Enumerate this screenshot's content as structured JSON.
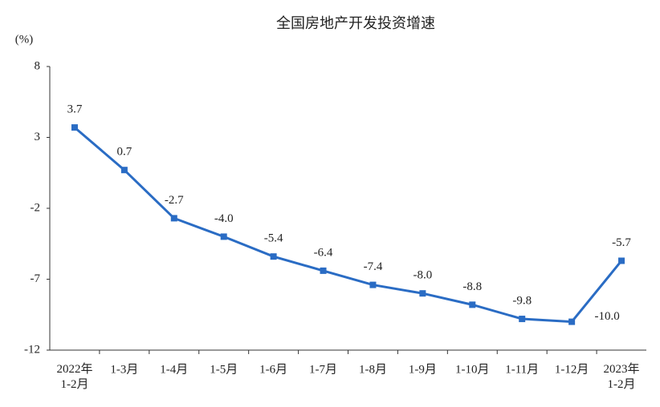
{
  "chart_data": {
    "type": "line",
    "title": "全国房地产开发投资增速",
    "y_label": "(%)",
    "categories": [
      "2022年\n1-2月",
      "1-3月",
      "1-4月",
      "1-5月",
      "1-6月",
      "1-7月",
      "1-8月",
      "1-9月",
      "1-10月",
      "1-11月",
      "1-12月",
      "2023年\n1-2月"
    ],
    "series": [
      {
        "name": "全国房地产开发投资增速",
        "color": "#2a6cc4",
        "values": [
          3.7,
          0.7,
          -2.7,
          -4.0,
          -5.4,
          -6.4,
          -7.4,
          -8.0,
          -8.8,
          -9.8,
          -10.0,
          -5.7
        ],
        "value_labels": [
          "3.7",
          "0.7",
          "-2.7",
          "-4.0",
          "-5.4",
          "-6.4",
          "-7.4",
          "-8.0",
          "-8.8",
          "-9.8",
          "-10.0",
          "-5.7"
        ]
      }
    ],
    "ylim": [
      -12,
      8
    ],
    "yticks": [
      8,
      3,
      -2,
      -7,
      -12
    ],
    "grid": false
  }
}
